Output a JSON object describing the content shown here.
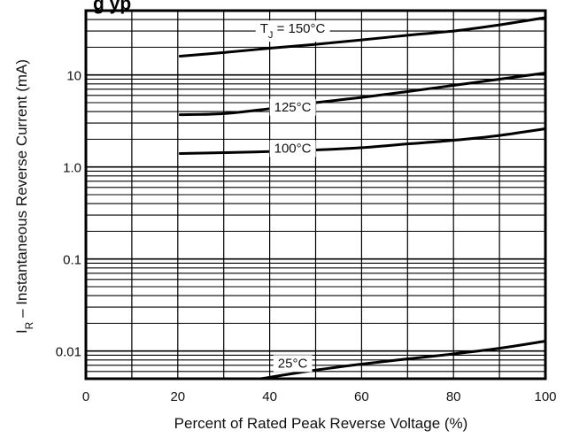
{
  "chart_data": {
    "type": "line",
    "title_fragment": "g  yp",
    "xlabel": "Percent of Rated Peak Reverse Voltage (%)",
    "ylabel_prefix": "I",
    "ylabel_sub": "R",
    "ylabel_rest": " – Instantaneous Reverse Current (mA)",
    "x_scale": "linear",
    "y_scale": "log",
    "xlim": [
      0,
      100
    ],
    "ylim": [
      0.005,
      50
    ],
    "grid": true,
    "x_ticks": [
      {
        "value": 0,
        "label": "0"
      },
      {
        "value": 20,
        "label": "20"
      },
      {
        "value": 40,
        "label": "40"
      },
      {
        "value": 60,
        "label": "60"
      },
      {
        "value": 80,
        "label": "80"
      },
      {
        "value": 100,
        "label": "100"
      }
    ],
    "y_ticks": [
      {
        "value": 0.01,
        "label": "0.01"
      },
      {
        "value": 0.1,
        "label": "0.1"
      },
      {
        "value": 1,
        "label": "1.0"
      },
      {
        "value": 10,
        "label": "10"
      }
    ],
    "series": [
      {
        "name": "T J = 150°C",
        "label_main": "T",
        "label_sub": "J",
        "label_rest": " = 150°C",
        "label_at": [
          45,
          32
        ],
        "x": [
          20.5,
          30,
          40,
          50,
          60,
          70,
          80,
          90,
          100
        ],
        "y": [
          16,
          17.5,
          19.5,
          21.5,
          24,
          27,
          30,
          35,
          42
        ]
      },
      {
        "name": "125°C",
        "label_main": "125°C",
        "label_at": [
          45,
          4.5
        ],
        "x": [
          20.5,
          30,
          40,
          50,
          60,
          70,
          80,
          90,
          100
        ],
        "y": [
          3.7,
          3.8,
          4.3,
          5,
          5.7,
          6.6,
          7.7,
          9,
          10.5
        ]
      },
      {
        "name": "100°C",
        "label_main": "100°C",
        "label_at": [
          45,
          1.6
        ],
        "x": [
          20.5,
          30,
          40,
          50,
          60,
          70,
          80,
          90,
          100
        ],
        "y": [
          1.4,
          1.43,
          1.47,
          1.53,
          1.62,
          1.78,
          1.95,
          2.2,
          2.6
        ]
      },
      {
        "name": "25°C",
        "label_main": "25°C",
        "label_at": [
          45,
          0.0074
        ],
        "x": [
          38,
          50,
          60,
          70,
          80,
          90,
          100
        ],
        "y": [
          0.005,
          0.0062,
          0.0072,
          0.0082,
          0.0093,
          0.0107,
          0.0128
        ]
      }
    ]
  }
}
